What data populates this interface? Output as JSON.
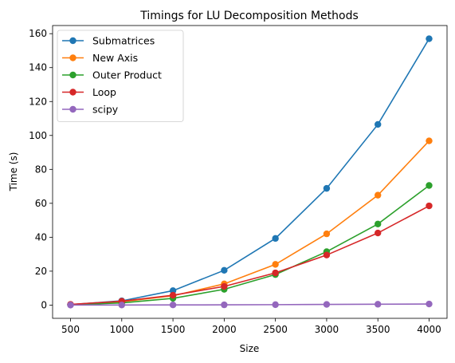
{
  "chart_data": {
    "type": "line",
    "title": "Timings for LU Decomposition Methods",
    "xlabel": "Size",
    "ylabel": "Time (s)",
    "x": [
      500,
      1000,
      1500,
      2000,
      2500,
      3000,
      3500,
      4000
    ],
    "xticks": [
      500,
      1000,
      1500,
      2000,
      2500,
      3000,
      3500,
      4000
    ],
    "yticks": [
      0,
      20,
      40,
      60,
      80,
      100,
      120,
      140,
      160
    ],
    "xlim": [
      325,
      4175
    ],
    "ylim": [
      -7.8,
      164.8
    ],
    "grid": false,
    "legend_position": "top-left",
    "series": [
      {
        "name": "Submatrices",
        "color": "#1f77b4",
        "values": [
          0.3,
          2.5,
          8.5,
          20.5,
          39.3,
          68.8,
          106.5,
          157.0
        ]
      },
      {
        "name": "New Axis",
        "color": "#ff7f0e",
        "values": [
          0.3,
          2.0,
          5.5,
          12.5,
          24.0,
          42.0,
          64.8,
          96.8
        ]
      },
      {
        "name": "Outer Product",
        "color": "#2ca02c",
        "values": [
          0.2,
          1.3,
          4.0,
          9.3,
          18.0,
          31.5,
          47.8,
          70.5
        ]
      },
      {
        "name": "Loop",
        "color": "#d62728",
        "values": [
          0.4,
          2.3,
          5.8,
          11.0,
          19.0,
          29.5,
          42.5,
          58.5
        ]
      },
      {
        "name": "scipy",
        "color": "#9467bd",
        "values": [
          0.02,
          0.05,
          0.1,
          0.15,
          0.25,
          0.4,
          0.5,
          0.65
        ]
      }
    ]
  }
}
